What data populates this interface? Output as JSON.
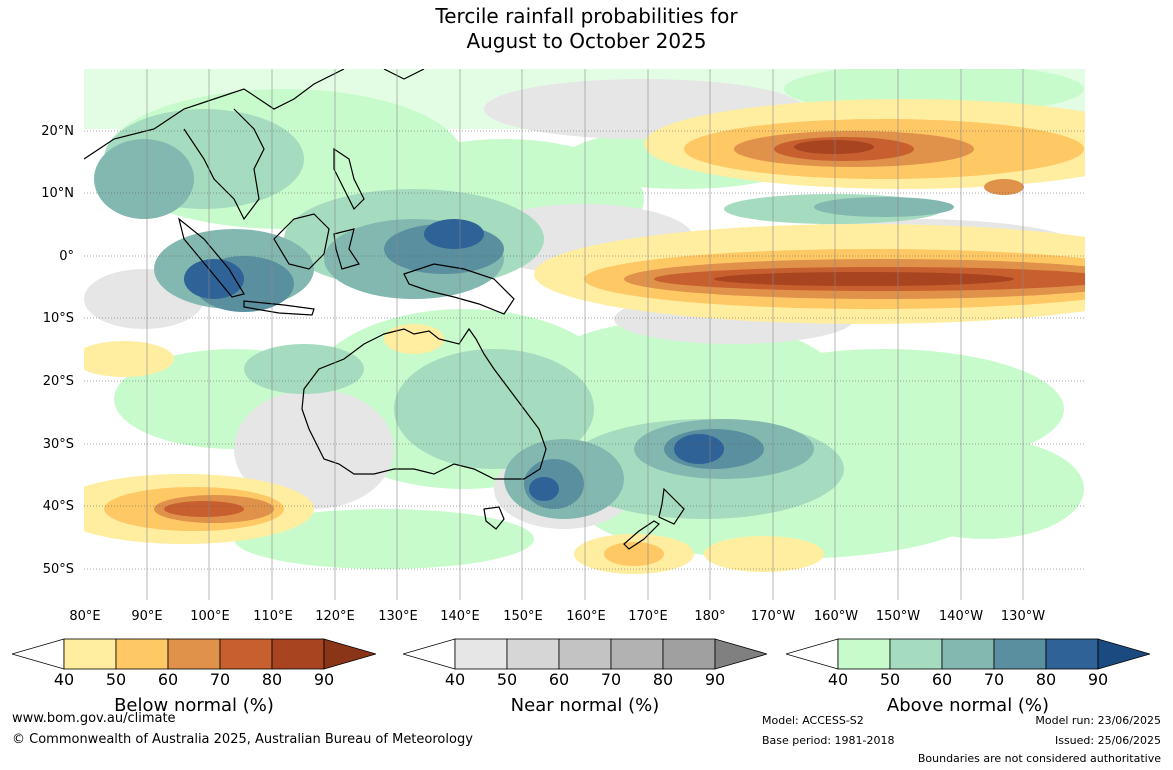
{
  "title_line1": "Tercile rainfall probabilities for",
  "title_line2": "August to October 2025",
  "lat_labels": [
    "20°N",
    "10°N",
    "0°",
    "10°S",
    "20°S",
    "30°S",
    "40°S",
    "50°S"
  ],
  "lon_labels": [
    "80°E",
    "90°E",
    "100°E",
    "110°E",
    "120°E",
    "130°E",
    "140°E",
    "150°E",
    "160°E",
    "170°E",
    "180°",
    "170°W",
    "160°W",
    "150°W",
    "140°W",
    "130°W"
  ],
  "legends": {
    "below": {
      "label": "Below normal (%)",
      "ticks": [
        "40",
        "50",
        "60",
        "70",
        "80",
        "90"
      ],
      "colors": [
        "#ffeda0",
        "#fec865",
        "#e0914a",
        "#c85f2e",
        "#a8441f",
        "#8a3418"
      ]
    },
    "near": {
      "label": "Near normal (%)",
      "ticks": [
        "40",
        "50",
        "60",
        "70",
        "80",
        "90"
      ],
      "colors": [
        "#e6e6e6",
        "#d6d6d6",
        "#c3c3c3",
        "#b2b2b2",
        "#a0a0a0",
        "#808080"
      ]
    },
    "above": {
      "label": "Above normal (%)",
      "ticks": [
        "40",
        "50",
        "60",
        "70",
        "80",
        "90"
      ],
      "colors": [
        "#c8fbcc",
        "#a5dcc0",
        "#82b8b0",
        "#5a8fa0",
        "#2f6296",
        "#1a4a80"
      ]
    }
  },
  "footer": {
    "website": "www.bom.gov.au/climate",
    "copyright": "© Commonwealth of Australia 2025, Australian Bureau of Meteorology",
    "model": "Model: ACCESS-S2",
    "base_period": "Base period: 1981-2018",
    "model_run": "Model run: 23/06/2025",
    "issued": "Issued: 25/06/2025",
    "boundaries": "Boundaries are not considered authoritative"
  }
}
